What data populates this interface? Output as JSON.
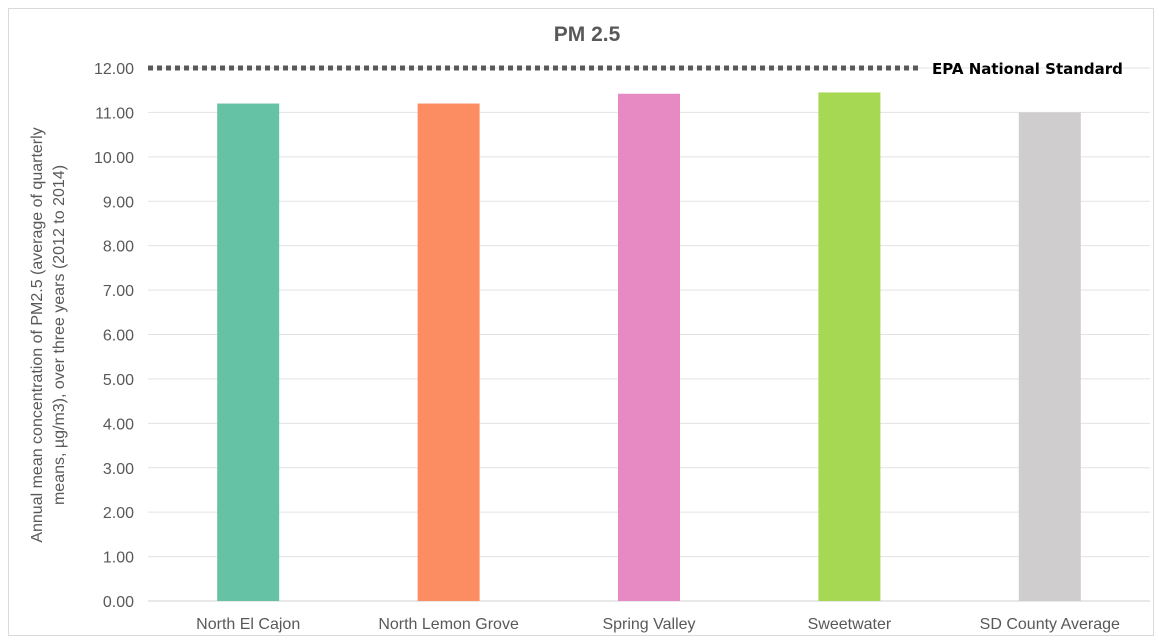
{
  "chart_data": {
    "type": "bar",
    "title": "PM 2.5",
    "ylabel_lines": [
      "Annual mean concentration of PM2.5 (average of quarterly",
      "means, µg/m3), over three years (2012 to 2014)"
    ],
    "xlabel": "",
    "categories": [
      "North El Cajon",
      "North Lemon Grove",
      "Spring Valley",
      "Sweetwater",
      "SD County Average"
    ],
    "values": [
      11.2,
      11.2,
      11.42,
      11.45,
      11.0
    ],
    "colors": [
      "#66c2a5",
      "#fc8d62",
      "#e78ac3",
      "#a6d854",
      "#cfcdce"
    ],
    "ylim": [
      0,
      12
    ],
    "yticks": [
      "0.00",
      "1.00",
      "2.00",
      "3.00",
      "4.00",
      "5.00",
      "6.00",
      "7.00",
      "8.00",
      "9.00",
      "10.00",
      "11.00",
      "12.00"
    ],
    "grid": true,
    "reference_line": {
      "value": 12.0,
      "label": "EPA National Standard",
      "color": "#595959",
      "style": "dotted"
    }
  }
}
